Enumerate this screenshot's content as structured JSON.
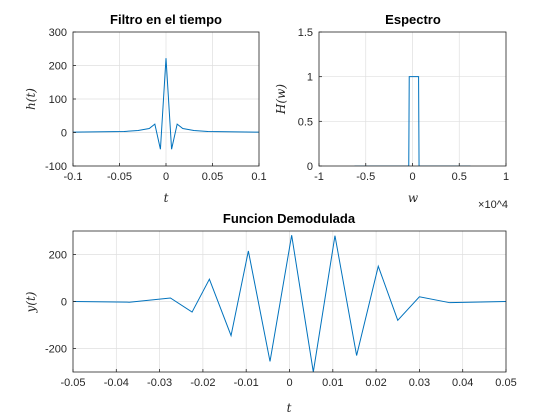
{
  "chart_data": [
    {
      "type": "line",
      "title": "Filtro en el tiempo",
      "xlabel": "t",
      "ylabel": "h(t)",
      "xlim": [
        -0.1,
        0.1
      ],
      "ylim": [
        -100,
        300
      ],
      "xticks": [
        -0.1,
        -0.05,
        0,
        0.05,
        0.1
      ],
      "xtick_labels": [
        "-0.1",
        "-0.05",
        "0",
        "0.05",
        "0.1"
      ],
      "yticks": [
        -100,
        0,
        100,
        200,
        300
      ],
      "ytick_labels": [
        "-100",
        "0",
        "100",
        "200",
        "300"
      ],
      "grid": true,
      "series": [
        {
          "color": "#0072BD",
          "x": [
            -0.1,
            -0.045,
            -0.03,
            -0.018,
            -0.012,
            -0.006,
            0,
            0.006,
            0.012,
            0.018,
            0.03,
            0.045,
            0.1
          ],
          "y": [
            1,
            3,
            6,
            12,
            25,
            -50,
            222,
            -50,
            25,
            12,
            6,
            3,
            1
          ]
        }
      ]
    },
    {
      "type": "line",
      "title": "Espectro",
      "xlabel": "w",
      "ylabel": "H(w)",
      "x_exponent": "×10^4",
      "xlim": [
        -1,
        1
      ],
      "ylim": [
        0,
        1.5
      ],
      "xticks": [
        -1,
        -0.5,
        0,
        0.5,
        1
      ],
      "xtick_labels": [
        "-1",
        "-0.5",
        "0",
        "0.5",
        "1"
      ],
      "yticks": [
        0,
        0.5,
        1,
        1.5
      ],
      "ytick_labels": [
        "0",
        "0.5",
        "1",
        "1.5"
      ],
      "grid": true,
      "series": [
        {
          "color": "#0072BD",
          "x": [
            -0.62,
            -0.05,
            -0.04,
            -0.035,
            0.065,
            0.07,
            0.08,
            0.62
          ],
          "y": [
            0,
            0,
            0,
            1.0,
            1.0,
            0,
            0,
            0
          ]
        }
      ]
    },
    {
      "type": "line",
      "title": "Funcion Demodulada",
      "xlabel": "t",
      "ylabel": "y(t)",
      "xlim": [
        -0.05,
        0.05
      ],
      "ylim": [
        -300,
        300
      ],
      "xticks": [
        -0.05,
        -0.04,
        -0.03,
        -0.02,
        -0.01,
        0,
        0.01,
        0.02,
        0.03,
        0.04,
        0.05
      ],
      "xtick_labels": [
        "-0.05",
        "-0.04",
        "-0.03",
        "-0.02",
        "-0.01",
        "0",
        "0.01",
        "0.02",
        "0.03",
        "0.04",
        "0.05"
      ],
      "yticks": [
        -200,
        0,
        200
      ],
      "ytick_labels": [
        "-200",
        "0",
        "200"
      ],
      "grid": true,
      "series": [
        {
          "color": "#0072BD",
          "x": [
            -0.05,
            -0.037,
            -0.0275,
            -0.0225,
            -0.0185,
            -0.0135,
            -0.0095,
            -0.0045,
            0.0005,
            0.0055,
            0.0105,
            0.0155,
            0.0205,
            0.025,
            0.03,
            0.037,
            0.05
          ],
          "y": [
            0,
            -3,
            15,
            -45,
            95,
            -145,
            215,
            -255,
            282,
            -300,
            280,
            -230,
            150,
            -80,
            20,
            -5,
            0
          ]
        }
      ]
    }
  ]
}
